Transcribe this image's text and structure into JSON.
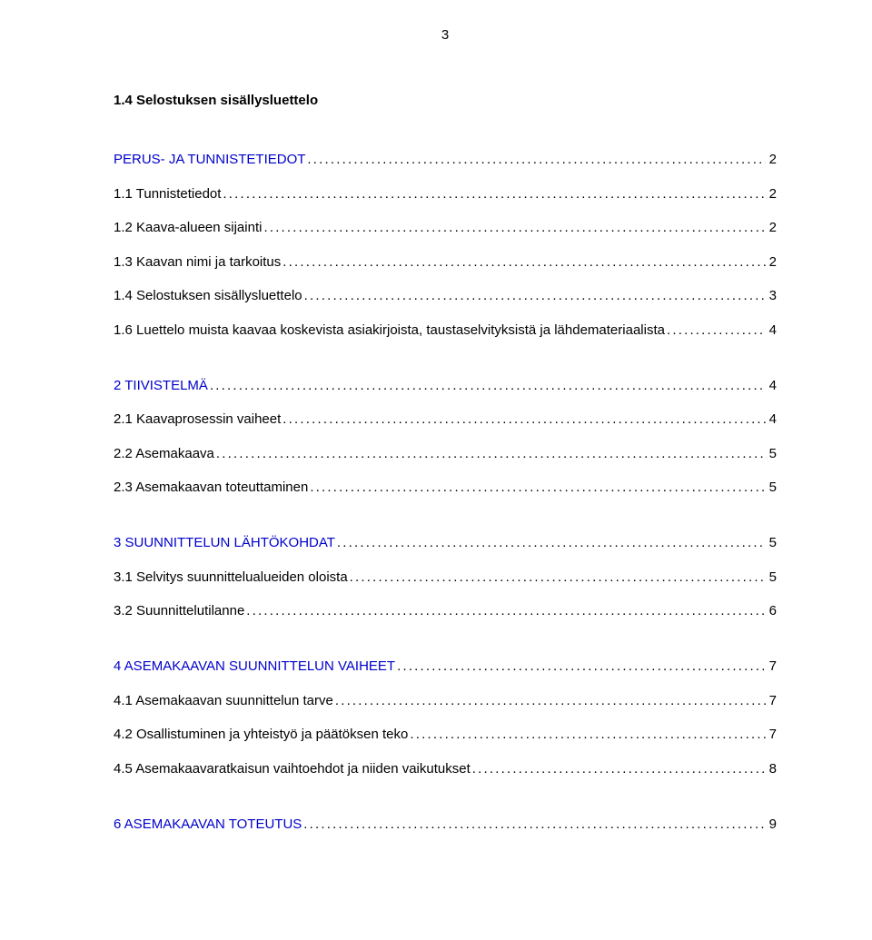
{
  "page_number": "3",
  "section_title": "1.4 Selostuksen sisällysluettelo",
  "link_color": "#0000cc",
  "text_color": "#000000",
  "toc": [
    {
      "label": "PERUS- JA TUNNISTETIEDOT",
      "page": "2",
      "link": true,
      "group_end": false
    },
    {
      "label": "1.1 Tunnistetiedot",
      "page": "2",
      "link": false,
      "group_end": false
    },
    {
      "label": "1.2 Kaava-alueen sijainti",
      "page": "2",
      "link": false,
      "group_end": false
    },
    {
      "label": "1.3 Kaavan nimi ja tarkoitus",
      "page": "2",
      "link": false,
      "group_end": false
    },
    {
      "label": "1.4 Selostuksen sisällysluettelo",
      "page": "3",
      "link": false,
      "group_end": false
    },
    {
      "label": "1.6 Luettelo muista kaavaa koskevista asiakirjoista, taustaselvityksistä ja lähdemateriaalista",
      "page": "4",
      "link": false,
      "group_end": true
    },
    {
      "label": "2 TIIVISTELMÄ",
      "page": "4",
      "link": true,
      "group_end": false
    },
    {
      "label": "2.1 Kaavaprosessin vaiheet",
      "page": "4",
      "link": false,
      "group_end": false
    },
    {
      "label": "2.2 Asemakaava",
      "page": "5",
      "link": false,
      "group_end": false
    },
    {
      "label": "2.3 Asemakaavan toteuttaminen",
      "page": "5",
      "link": false,
      "group_end": true
    },
    {
      "label": "3 SUUNNITTELUN LÄHTÖKOHDAT",
      "page": "5",
      "link": true,
      "group_end": false
    },
    {
      "label": "3.1 Selvitys suunnittelualueiden oloista",
      "page": "5",
      "link": false,
      "group_end": false
    },
    {
      "label": "3.2 Suunnittelutilanne",
      "page": "6",
      "link": false,
      "group_end": true
    },
    {
      "label": "4 ASEMAKAAVAN SUUNNITTELUN VAIHEET",
      "page": "7",
      "link": true,
      "group_end": false
    },
    {
      "label": "4.1 Asemakaavan suunnittelun tarve",
      "page": "7",
      "link": false,
      "group_end": false
    },
    {
      "label": "4.2 Osallistuminen ja yhteistyö ja päätöksen teko",
      "page": "7",
      "link": false,
      "group_end": false
    },
    {
      "label": "4.5 Asemakaavaratkaisun vaihtoehdot ja niiden vaikutukset",
      "page": "8",
      "link": false,
      "group_end": true
    },
    {
      "label": "6 ASEMAKAAVAN TOTEUTUS",
      "page": "9",
      "link": true,
      "group_end": false
    }
  ]
}
